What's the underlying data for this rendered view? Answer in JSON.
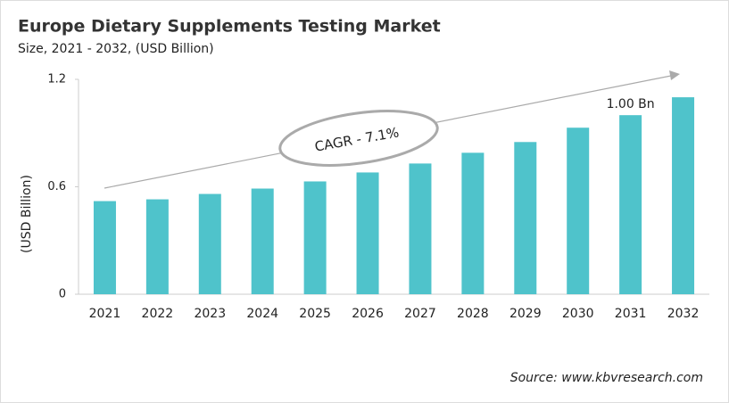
{
  "chart_data": {
    "type": "bar",
    "title": "Europe Dietary Supplements Testing Market",
    "subtitle": "Size, 2021 - 2032, (USD Billion)",
    "y_label": "(USD Billion)",
    "annotation": "CAGR - 7.1%",
    "source": "Source: www.kbvresearch.com",
    "categories": [
      "2021",
      "2022",
      "2023",
      "2024",
      "2025",
      "2026",
      "2027",
      "2028",
      "2029",
      "2030",
      "2031",
      "2032"
    ],
    "values": [
      0.52,
      0.53,
      0.56,
      0.59,
      0.63,
      0.68,
      0.73,
      0.79,
      0.85,
      0.93,
      1.0,
      1.1
    ],
    "value_labels": [
      null,
      null,
      null,
      null,
      null,
      null,
      null,
      null,
      null,
      null,
      "1.00 Bn",
      null
    ],
    "color": "#4fc3cb",
    "ylim": [
      0,
      1.2
    ],
    "yticks": [
      0,
      0.6,
      1.2
    ],
    "grid": false
  }
}
